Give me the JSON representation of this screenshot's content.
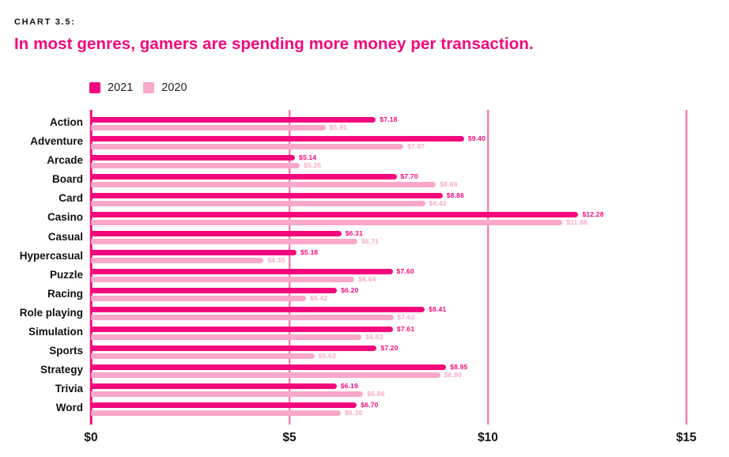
{
  "header": {
    "kicker": "CHART 3.5:",
    "title": "In most genres, gamers are spending more money per transaction."
  },
  "legend": [
    {
      "label": "2021",
      "color": "#F4077D"
    },
    {
      "label": "2020",
      "color": "#F9A8C9"
    }
  ],
  "colors": {
    "accent": "#F4077D",
    "light_pink": "#F9A8C9",
    "gridline": "#F767A2",
    "text": "#141414"
  },
  "chart_data": {
    "type": "bar",
    "orientation": "horizontal",
    "title": "In most genres, gamers are spending more money per transaction.",
    "categories": [
      "Action",
      "Adventure",
      "Arcade",
      "Board",
      "Card",
      "Casino",
      "Casual",
      "Hypercasual",
      "Puzzle",
      "Racing",
      "Role playing",
      "Simulation",
      "Sports",
      "Strategy",
      "Trivia",
      "Word"
    ],
    "series": [
      {
        "name": "2021",
        "color": "#F4077D",
        "values": [
          7.18,
          9.4,
          5.14,
          7.7,
          8.86,
          12.28,
          6.31,
          5.18,
          7.6,
          6.2,
          8.41,
          7.61,
          7.2,
          8.95,
          6.19,
          6.7
        ]
      },
      {
        "name": "2020",
        "color": "#F9A8C9",
        "values": [
          5.91,
          7.87,
          5.26,
          8.69,
          8.42,
          11.88,
          6.71,
          4.35,
          6.64,
          5.42,
          7.62,
          6.82,
          5.63,
          8.8,
          6.86,
          6.3
        ]
      }
    ],
    "value_prefix": "$",
    "value_decimals": 2,
    "x_ticks": [
      {
        "label": "$0",
        "value": 0
      },
      {
        "label": "$5",
        "value": 5
      },
      {
        "label": "$10",
        "value": 10
      },
      {
        "label": "$15",
        "value": 15
      }
    ],
    "xlabel": "",
    "ylabel": "",
    "xlim": [
      0,
      15
    ],
    "grid": true,
    "legend_position": "top-left"
  }
}
